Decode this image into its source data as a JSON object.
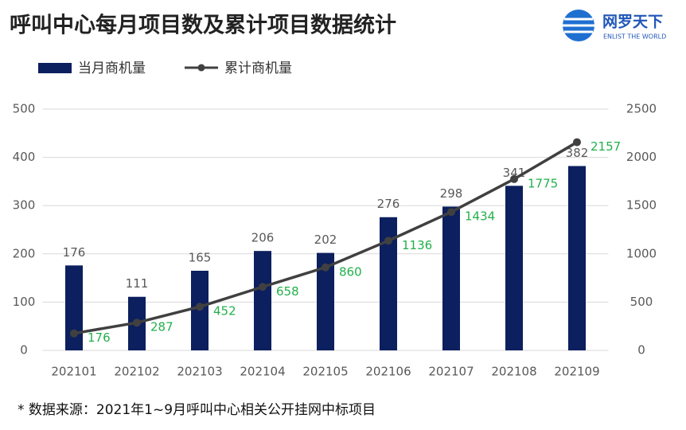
{
  "logo": {
    "name": "网罗天下",
    "tagline": "ENLIST THE WORLD"
  },
  "chart_data": {
    "type": "combo",
    "title": "呼叫中心每月项目数及累计项目数据统计",
    "categories": [
      "202101",
      "202102",
      "202103",
      "202104",
      "202105",
      "202106",
      "202107",
      "202108",
      "202109"
    ],
    "series": [
      {
        "name": "当月商机量",
        "type": "bar",
        "color": "#0c1f5e",
        "label_color": "#595959",
        "values": [
          176,
          111,
          165,
          206,
          202,
          276,
          298,
          341,
          382
        ]
      },
      {
        "name": "累计商机量",
        "type": "line",
        "axis": "y2",
        "color": "#404040",
        "label_color": "#22b04b",
        "values": [
          176,
          287,
          452,
          658,
          860,
          1136,
          1434,
          1775,
          2157
        ]
      }
    ],
    "ylim": [
      0,
      500
    ],
    "yticks": [
      0,
      100,
      200,
      300,
      400,
      500
    ],
    "y2lim": [
      0,
      2500
    ],
    "y2ticks": [
      0,
      500,
      1000,
      1500,
      2000,
      2500
    ],
    "grid": true,
    "legend": "top-left",
    "note": "* 数据来源：2021年1~9月呼叫中心相关公开挂网中标项目"
  }
}
